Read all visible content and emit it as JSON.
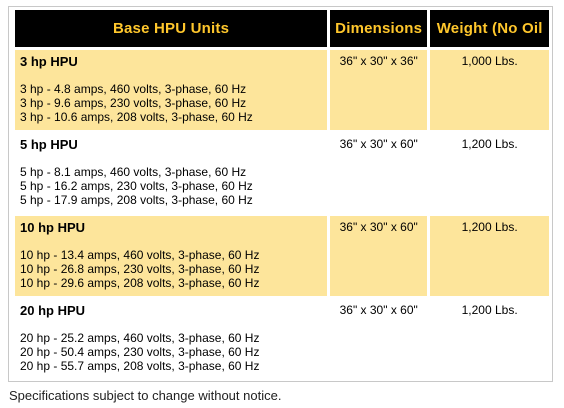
{
  "table": {
    "headers": [
      "Base HPU Units",
      "Dimensions",
      "Weight (No Oil"
    ],
    "rows": [
      {
        "unit": "3 hp HPU",
        "specs": [
          "3 hp - 4.8 amps, 460 volts, 3-phase, 60 Hz",
          "3 hp - 9.6 amps, 230 volts, 3-phase, 60 Hz",
          "3 hp - 10.6 amps, 208 volts, 3-phase, 60 Hz"
        ],
        "dimensions": "36\" x 30\" x 36\"",
        "weight": "1,000 Lbs.",
        "shaded": true
      },
      {
        "unit": "5 hp HPU",
        "specs": [
          "5 hp - 8.1 amps, 460 volts, 3-phase, 60 Hz",
          "5 hp - 16.2 amps, 230 volts, 3-phase, 60 Hz",
          "5 hp - 17.9 amps, 208 volts, 3-phase, 60 Hz"
        ],
        "dimensions": "36\" x 30\" x 60\"",
        "weight": "1,200 Lbs.",
        "shaded": false
      },
      {
        "unit": "10 hp HPU",
        "specs": [
          "10 hp - 13.4 amps, 460 volts, 3-phase, 60 Hz",
          "10 hp - 26.8 amps, 230 volts, 3-phase, 60 Hz",
          "10 hp - 29.6 amps, 208 volts, 3-phase, 60 Hz"
        ],
        "dimensions": "36\" x 30\" x 60\"",
        "weight": "1,200 Lbs.",
        "shaded": true
      },
      {
        "unit": "20 hp HPU",
        "specs": [
          "20 hp - 25.2 amps, 460 volts, 3-phase, 60 Hz",
          "20 hp - 50.4 amps, 230 volts, 3-phase, 60 Hz",
          "20 hp - 55.7 amps, 208 volts, 3-phase, 60 Hz"
        ],
        "dimensions": "36\" x 30\" x 60\"",
        "weight": "1,200 Lbs.",
        "shaded": false
      }
    ]
  },
  "footnote": "Specifications subject to change without notice.",
  "colors": {
    "header_bg": "#000000",
    "header_text": "#ffc72c",
    "row_shade": "#fde59b",
    "row_plain": "#ffffff"
  }
}
